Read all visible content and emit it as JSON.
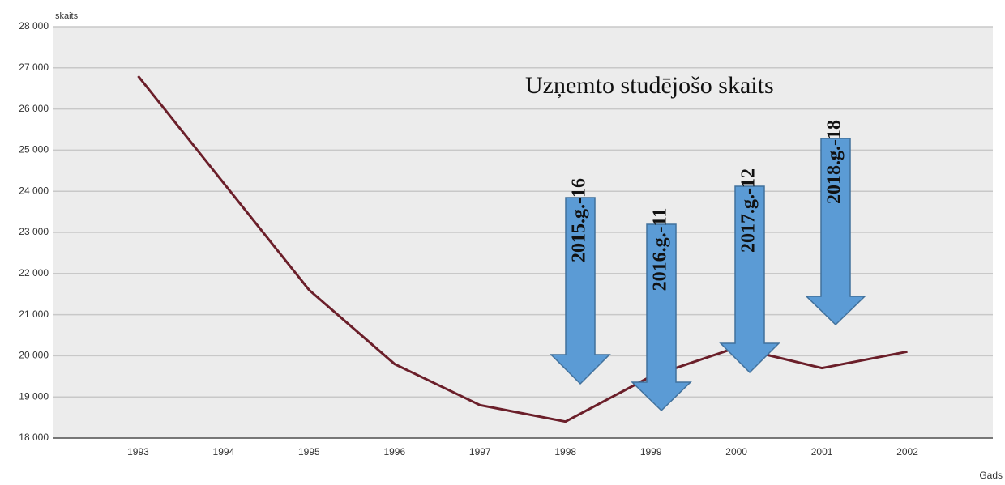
{
  "chart_data": {
    "type": "line",
    "title": "Uzņemto studējošo skaits",
    "y_label": "skaits",
    "x_label": "Gads",
    "categories": [
      "1993",
      "1994",
      "1995",
      "1996",
      "1997",
      "1998",
      "1999",
      "2000",
      "2001",
      "2002"
    ],
    "values": [
      26800,
      24200,
      21600,
      19800,
      18800,
      18400,
      19500,
      20200,
      19700,
      20100
    ],
    "color": "#6b1f2a",
    "ylim": [
      18000,
      28000
    ],
    "yticks": [
      {
        "value": 18000,
        "label": "18 000"
      },
      {
        "value": 19000,
        "label": "19 000"
      },
      {
        "value": 20000,
        "label": "20 000"
      },
      {
        "value": 21000,
        "label": "21 000"
      },
      {
        "value": 22000,
        "label": "22 000"
      },
      {
        "value": 23000,
        "label": "23 000"
      },
      {
        "value": 24000,
        "label": "24 000"
      },
      {
        "value": 25000,
        "label": "25 000"
      },
      {
        "value": 26000,
        "label": "26 000"
      },
      {
        "value": 27000,
        "label": "27 000"
      },
      {
        "value": 28000,
        "label": "28 000"
      }
    ],
    "grid": true,
    "annotations": [
      "2015.g.-16",
      "2016.g.-11",
      "2017.g.-12",
      "2018.g.-18"
    ]
  }
}
